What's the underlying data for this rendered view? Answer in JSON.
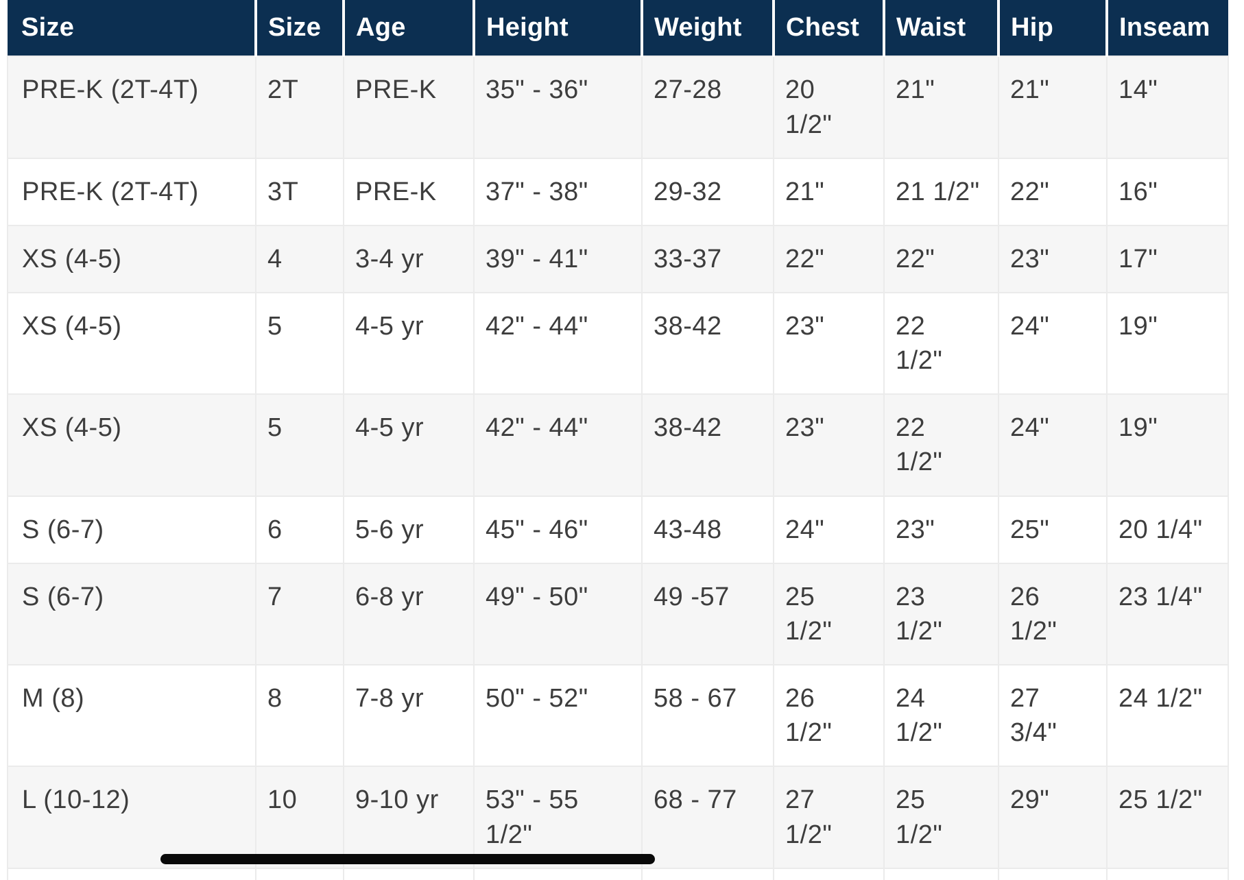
{
  "table": {
    "columns": [
      "Size",
      "Size",
      "Age",
      "Height",
      "Weight",
      "Chest",
      "Waist",
      "Hip",
      "Inseam"
    ],
    "rows": [
      {
        "cells": [
          "PRE-K (2T-4T)",
          "2T",
          "PRE-K",
          "35\" - 36\"",
          "27-28",
          "20\n1/2\"",
          "21\"",
          "21\"",
          "14\""
        ]
      },
      {
        "cells": [
          "PRE-K (2T-4T)",
          "3T",
          "PRE-K",
          "37\" - 38\"",
          "29-32",
          "21\"",
          "21 1/2\"",
          "22\"",
          "16\""
        ]
      },
      {
        "cells": [
          "XS (4-5)",
          "4",
          "3-4 yr",
          "39\" - 41\"",
          "33-37",
          "22\"",
          "22\"",
          "23\"",
          "17\""
        ]
      },
      {
        "cells": [
          "XS (4-5)",
          "5",
          "4-5 yr",
          "42\" - 44\"",
          "38-42",
          "23\"",
          "22\n1/2\"",
          "24\"",
          "19\""
        ]
      },
      {
        "cells": [
          "XS (4-5)",
          "5",
          "4-5 yr",
          "42\" - 44\"",
          "38-42",
          "23\"",
          "22\n1/2\"",
          "24\"",
          "19\""
        ]
      },
      {
        "cells": [
          "S (6-7)",
          "6",
          "5-6 yr",
          "45\" - 46\"",
          "43-48",
          "24\"",
          "23\"",
          "25\"",
          "20 1/4\""
        ]
      },
      {
        "cells": [
          "S (6-7)",
          "7",
          "6-8 yr",
          "49\" - 50\"",
          "49 -57",
          "25\n1/2\"",
          "23\n1/2\"",
          "26\n1/2\"",
          "23 1/4\""
        ]
      },
      {
        "cells": [
          "M (8)",
          "8",
          "7-8 yr",
          "50\" - 52\"",
          "58 - 67",
          "26\n1/2\"",
          "24\n1/2\"",
          "27\n3/4\"",
          "24 1/2\""
        ]
      },
      {
        "cells": [
          "L (10-12)",
          "10",
          "9-10 yr",
          "53\" - 55\n1/2\"",
          "68 - 77",
          "27\n1/2\"",
          "25\n1/2\"",
          "29\"",
          "25 1/2\""
        ]
      }
    ]
  },
  "colors": {
    "header_bg": "#0c2f51",
    "header_text": "#ffffff",
    "row_shaded": "#f6f6f6",
    "row_plain": "#ffffff",
    "cell_border": "#ebebeb",
    "body_text": "#3d3d3d",
    "scrollbar": "#0a0a0a"
  }
}
